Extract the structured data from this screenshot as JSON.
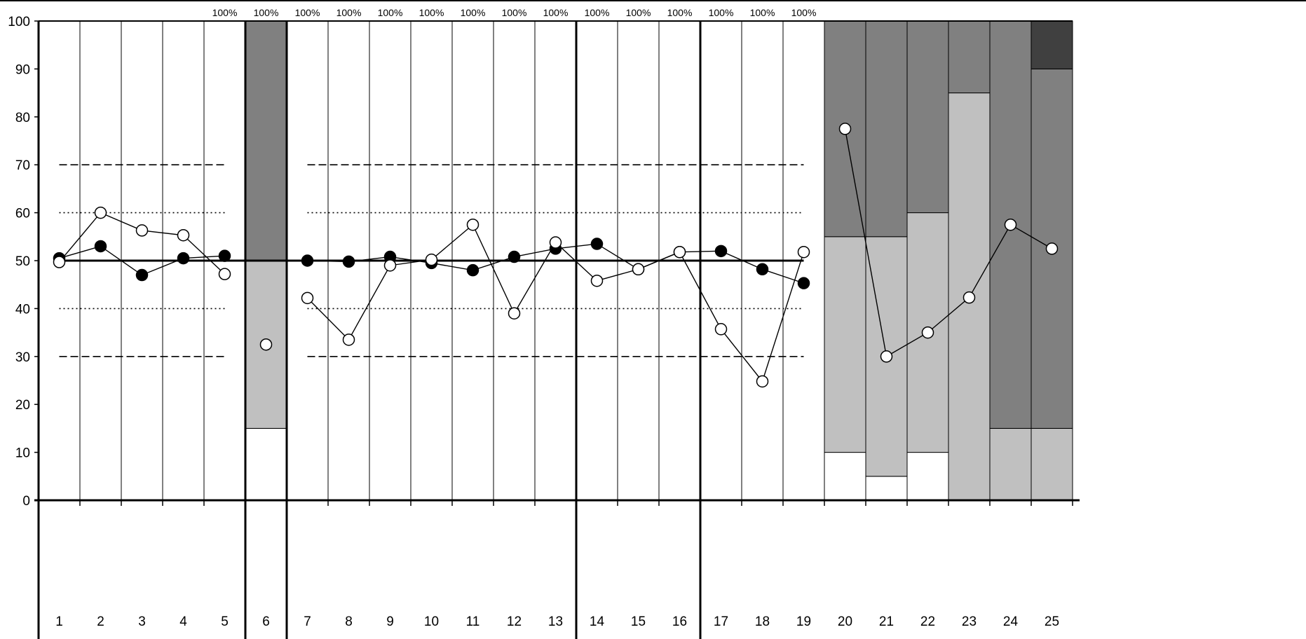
{
  "chart_data": {
    "type": "line",
    "title": "",
    "xlabel": "",
    "ylabel": "",
    "ylim": [
      0,
      100
    ],
    "y_ticks": [
      "0",
      "10",
      "20",
      "30",
      "40",
      "50",
      "60",
      "70",
      "80",
      "90",
      "100"
    ],
    "categories": [
      "1",
      "2",
      "3",
      "4",
      "5",
      "6",
      "7",
      "8",
      "9",
      "10",
      "11",
      "12",
      "13",
      "14",
      "15",
      "16",
      "17",
      "18",
      "19",
      "20",
      "21",
      "22",
      "23",
      "24",
      "25"
    ],
    "top_labels": {
      "categories": [
        "5",
        "6",
        "7",
        "8",
        "9",
        "10",
        "11",
        "12",
        "13",
        "14",
        "15",
        "16",
        "17",
        "18",
        "19"
      ],
      "text": "100%"
    },
    "section_dividers_after": [
      5,
      6,
      13,
      16
    ],
    "reference_lines": [
      {
        "y": 50,
        "style": "solid",
        "from": 1,
        "to": 19
      },
      {
        "y": 60,
        "style": "dotted",
        "from": 1,
        "to": 19,
        "skip": [
          6
        ]
      },
      {
        "y": 40,
        "style": "dotted",
        "from": 1,
        "to": 19,
        "skip": [
          6
        ]
      },
      {
        "y": 70,
        "style": "dashed",
        "from": 1,
        "to": 19,
        "skip": [
          6
        ]
      },
      {
        "y": 30,
        "style": "dashed",
        "from": 1,
        "to": 19,
        "skip": [
          6
        ]
      }
    ],
    "band_colors": {
      "white": "#ffffff",
      "light": "#c0c0c0",
      "mid": "#808080",
      "dark": "#404040"
    },
    "stacked_columns": [
      {
        "category": "6",
        "bands": [
          15,
          35,
          50,
          0
        ]
      },
      {
        "category": "20",
        "bands": [
          10,
          45,
          45,
          0
        ]
      },
      {
        "category": "21",
        "bands": [
          5,
          50,
          45,
          0
        ]
      },
      {
        "category": "22",
        "bands": [
          10,
          50,
          40,
          0
        ]
      },
      {
        "category": "23",
        "bands": [
          0,
          85,
          15,
          0
        ]
      },
      {
        "category": "24",
        "bands": [
          0,
          15,
          85,
          0
        ]
      },
      {
        "category": "25",
        "bands": [
          0,
          15,
          75,
          10
        ]
      }
    ],
    "series": [
      {
        "marker": "filled",
        "color": "#000000",
        "segments": [
          [
            [
              1,
              50.5
            ],
            [
              2,
              53
            ],
            [
              3,
              47
            ],
            [
              4,
              50.5
            ],
            [
              5,
              51
            ]
          ],
          [
            [
              7,
              50
            ],
            [
              8,
              49.8
            ],
            [
              9,
              50.8
            ],
            [
              10,
              49.5
            ],
            [
              11,
              48
            ],
            [
              12,
              50.8
            ],
            [
              13,
              52.5
            ],
            [
              14,
              53.5
            ],
            [
              15,
              48.2
            ],
            [
              16,
              51.8
            ],
            [
              17,
              52
            ],
            [
              18,
              48.2
            ],
            [
              19,
              45.3
            ]
          ]
        ]
      },
      {
        "marker": "open",
        "color": "#000000",
        "segments": [
          [
            [
              1,
              49.7
            ],
            [
              2,
              60
            ],
            [
              3,
              56.3
            ],
            [
              4,
              55.3
            ],
            [
              5,
              47.2
            ]
          ],
          [
            [
              6,
              32.5
            ]
          ],
          [
            [
              7,
              42.2
            ],
            [
              8,
              33.5
            ],
            [
              9,
              49
            ],
            [
              10,
              50.2
            ],
            [
              11,
              57.5
            ],
            [
              12,
              39
            ],
            [
              13,
              53.8
            ],
            [
              14,
              45.8
            ],
            [
              15,
              48.2
            ],
            [
              16,
              51.8
            ],
            [
              17,
              35.7
            ],
            [
              18,
              24.8
            ],
            [
              19,
              51.8
            ]
          ],
          [
            [
              20,
              77.5
            ],
            [
              21,
              30
            ],
            [
              22,
              35
            ],
            [
              23,
              42.3
            ],
            [
              24,
              57.5
            ],
            [
              25,
              52.5
            ]
          ]
        ]
      }
    ]
  }
}
